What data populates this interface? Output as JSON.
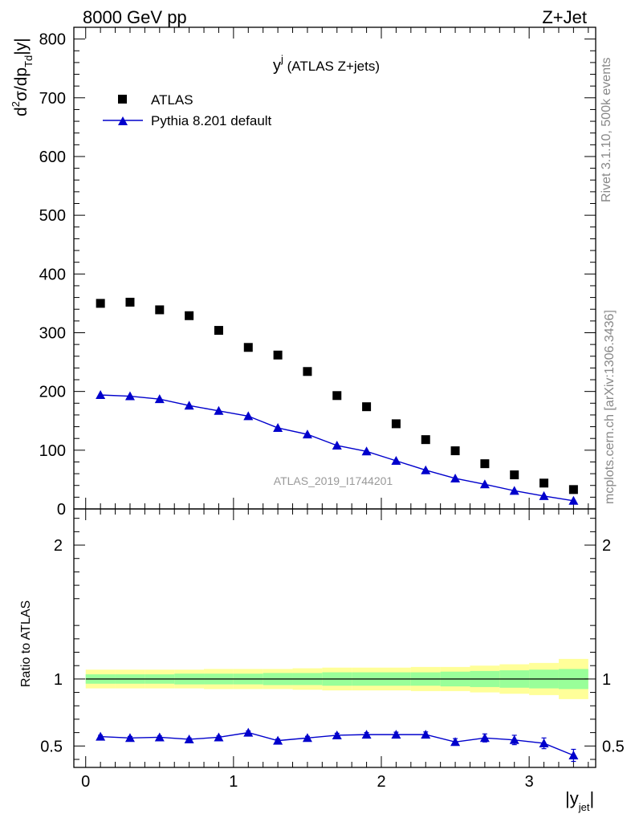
{
  "header": {
    "left": "8000 GeV pp",
    "right": "Z+Jet"
  },
  "plot_title": {
    "main": "y",
    "sup": "j",
    "rest": " (ATLAS Z+jets)"
  },
  "side_labels": {
    "rivet": "Rivet 3.1.10,  500k events",
    "mcplots": "mcplots.cern.ch [arXiv:1306.3436]"
  },
  "watermark": "ATLAS_2019_I1744201",
  "colors": {
    "data": "#000000",
    "mc": "#0000cc",
    "band_inner": "#99ff99",
    "band_outer": "#ffff99"
  },
  "chart_data": [
    {
      "type": "scatter",
      "panel": "main",
      "ylabel": {
        "a": "d",
        "a_sup": "2",
        "b": "σ/dp",
        "b_sub": "Td",
        "c": "|y|"
      },
      "ylim": [
        0,
        820
      ],
      "yticks": [
        0,
        100,
        200,
        300,
        400,
        500,
        600,
        700,
        800
      ],
      "xlim": [
        -0.08,
        3.45
      ],
      "legend": {
        "placement": "top-left",
        "entries": [
          "ATLAS",
          "Pythia 8.201 default"
        ]
      },
      "x": [
        0.1,
        0.3,
        0.5,
        0.7,
        0.9,
        1.1,
        1.3,
        1.5,
        1.7,
        1.9,
        2.1,
        2.3,
        2.5,
        2.7,
        2.9,
        3.1,
        3.3
      ],
      "series": [
        {
          "name": "ATLAS",
          "marker": "square",
          "values": [
            350,
            352,
            339,
            329,
            304,
            275,
            262,
            234,
            193,
            174,
            145,
            118,
            99,
            77,
            58,
            44,
            33
          ]
        },
        {
          "name": "Pythia 8.201 default",
          "marker": "triangle",
          "values": [
            194,
            192,
            187,
            176,
            167,
            158,
            138,
            127,
            108,
            98,
            82,
            66,
            52,
            42,
            31,
            22,
            14
          ]
        }
      ]
    },
    {
      "type": "line",
      "panel": "ratio",
      "ylabel": "Ratio to ATLAS",
      "ylim": [
        0.34,
        2.27
      ],
      "yticks": [
        0.5,
        1,
        2
      ],
      "ytick_labels": [
        "0.5",
        "1",
        "2"
      ],
      "xlim": [
        -0.08,
        3.45
      ],
      "xticks": [
        0,
        1,
        2,
        3
      ],
      "xtick_labels": [
        "0",
        "1",
        "2",
        "3"
      ],
      "xlabel": {
        "main": "|y",
        "sub": "jet",
        "end": "|"
      },
      "x": [
        0.1,
        0.3,
        0.5,
        0.7,
        0.9,
        1.1,
        1.3,
        1.5,
        1.7,
        1.9,
        2.1,
        2.3,
        2.5,
        2.7,
        2.9,
        3.1,
        3.3
      ],
      "series": [
        {
          "name": "Pythia 8.201 default",
          "values": [
            0.57,
            0.56,
            0.565,
            0.55,
            0.565,
            0.6,
            0.54,
            0.56,
            0.58,
            0.585,
            0.585,
            0.585,
            0.53,
            0.56,
            0.545,
            0.52,
            0.43
          ],
          "errors": [
            0.01,
            0.01,
            0.01,
            0.01,
            0.01,
            0.012,
            0.012,
            0.012,
            0.015,
            0.015,
            0.018,
            0.02,
            0.025,
            0.03,
            0.035,
            0.04,
            0.045
          ]
        }
      ],
      "bands": {
        "x_edges": [
          0,
          0.2,
          0.4,
          0.6,
          0.8,
          1.0,
          1.2,
          1.4,
          1.6,
          1.8,
          2.0,
          2.2,
          2.4,
          2.6,
          2.8,
          3.0,
          3.2,
          3.4
        ],
        "inner_half": [
          0.035,
          0.035,
          0.035,
          0.04,
          0.04,
          0.04,
          0.045,
          0.045,
          0.05,
          0.05,
          0.05,
          0.05,
          0.055,
          0.06,
          0.065,
          0.07,
          0.075
        ],
        "outer_half": [
          0.07,
          0.07,
          0.07,
          0.07,
          0.075,
          0.075,
          0.075,
          0.08,
          0.085,
          0.085,
          0.085,
          0.09,
          0.09,
          0.1,
          0.11,
          0.12,
          0.15
        ]
      }
    }
  ]
}
